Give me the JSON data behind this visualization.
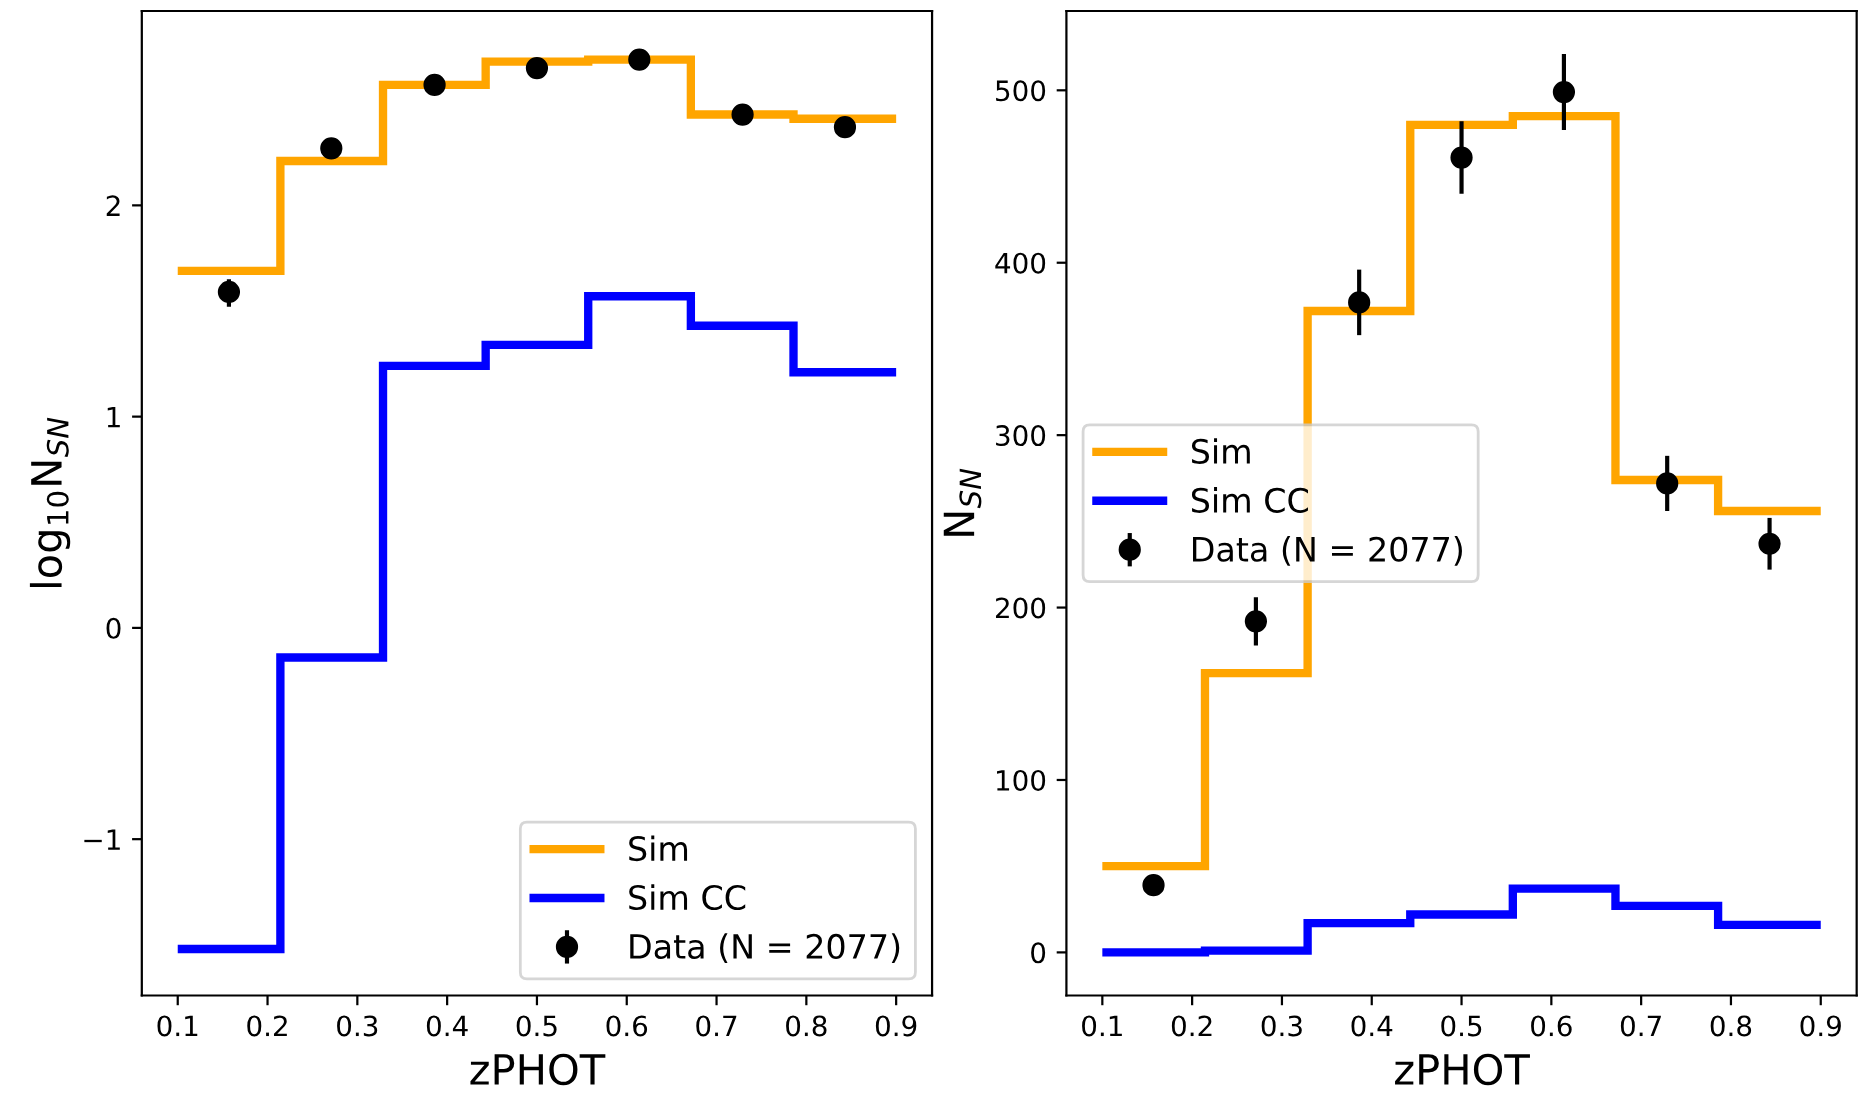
{
  "chart_data": [
    {
      "type": "histogram",
      "xlabel": "zPHOT",
      "ylabel": "log$_{10}$N$_{SN}$",
      "bins": [
        0.1,
        0.2143,
        0.3286,
        0.4429,
        0.5571,
        0.6714,
        0.7857,
        0.9
      ],
      "xlim": [
        0.06,
        0.94
      ],
      "xticks": [
        0.1,
        0.2,
        0.3,
        0.4,
        0.5,
        0.6,
        0.7,
        0.8,
        0.9
      ],
      "ylim": [
        -1.74,
        2.92
      ],
      "yticks": [
        {
          "value": -1,
          "label": "−1"
        },
        0,
        1,
        2
      ],
      "legend": "bottom right",
      "grid": false,
      "series": [
        {
          "name": "Sim",
          "color": "#ffa500",
          "values": [
            1.69,
            2.21,
            2.57,
            2.68,
            2.69,
            2.43,
            2.41
          ]
        },
        {
          "name": "Sim CC",
          "color": "#0000ff",
          "values": [
            -1.52,
            -0.14,
            1.24,
            1.34,
            1.57,
            1.43,
            1.21
          ]
        },
        {
          "name": "Data (N = 2077)",
          "type": "scatter",
          "marker": "circle",
          "color": "#000000",
          "x": [
            0.157,
            0.271,
            0.386,
            0.5,
            0.614,
            0.729,
            0.843
          ],
          "values": [
            1.59,
            2.27,
            2.57,
            2.65,
            2.69,
            2.43,
            2.37
          ],
          "errors": [
            [
              1.52,
              1.65
            ],
            [
              2.24,
              2.31
            ],
            [
              2.55,
              2.59
            ],
            [
              2.63,
              2.67
            ],
            [
              2.67,
              2.71
            ],
            [
              2.4,
              2.46
            ],
            [
              2.34,
              2.4
            ]
          ]
        }
      ]
    },
    {
      "type": "histogram",
      "xlabel": "zPHOT",
      "ylabel": "N$_{SN}$",
      "bins": [
        0.1,
        0.2143,
        0.3286,
        0.4429,
        0.5571,
        0.6714,
        0.7857,
        0.9
      ],
      "xlim": [
        0.06,
        0.94
      ],
      "xticks": [
        0.1,
        0.2,
        0.3,
        0.4,
        0.5,
        0.6,
        0.7,
        0.8,
        0.9
      ],
      "ylim": [
        -25,
        546
      ],
      "yticks": [
        0,
        100,
        200,
        300,
        400,
        500
      ],
      "legend": "left",
      "grid": false,
      "series": [
        {
          "name": "Sim",
          "color": "#ffa500",
          "values": [
            50,
            162,
            372,
            480,
            485,
            274,
            256
          ]
        },
        {
          "name": "Sim CC",
          "color": "#0000ff",
          "values": [
            0,
            1,
            17,
            22,
            37,
            27,
            16
          ]
        },
        {
          "name": "Data (N = 2077)",
          "type": "scatter",
          "marker": "circle",
          "color": "#000000",
          "x": [
            0.157,
            0.271,
            0.386,
            0.5,
            0.614,
            0.729,
            0.843
          ],
          "values": [
            39,
            192,
            377,
            461,
            499,
            272,
            237
          ],
          "errors": [
            6,
            14,
            19,
            21,
            22,
            16,
            15
          ]
        }
      ]
    }
  ]
}
